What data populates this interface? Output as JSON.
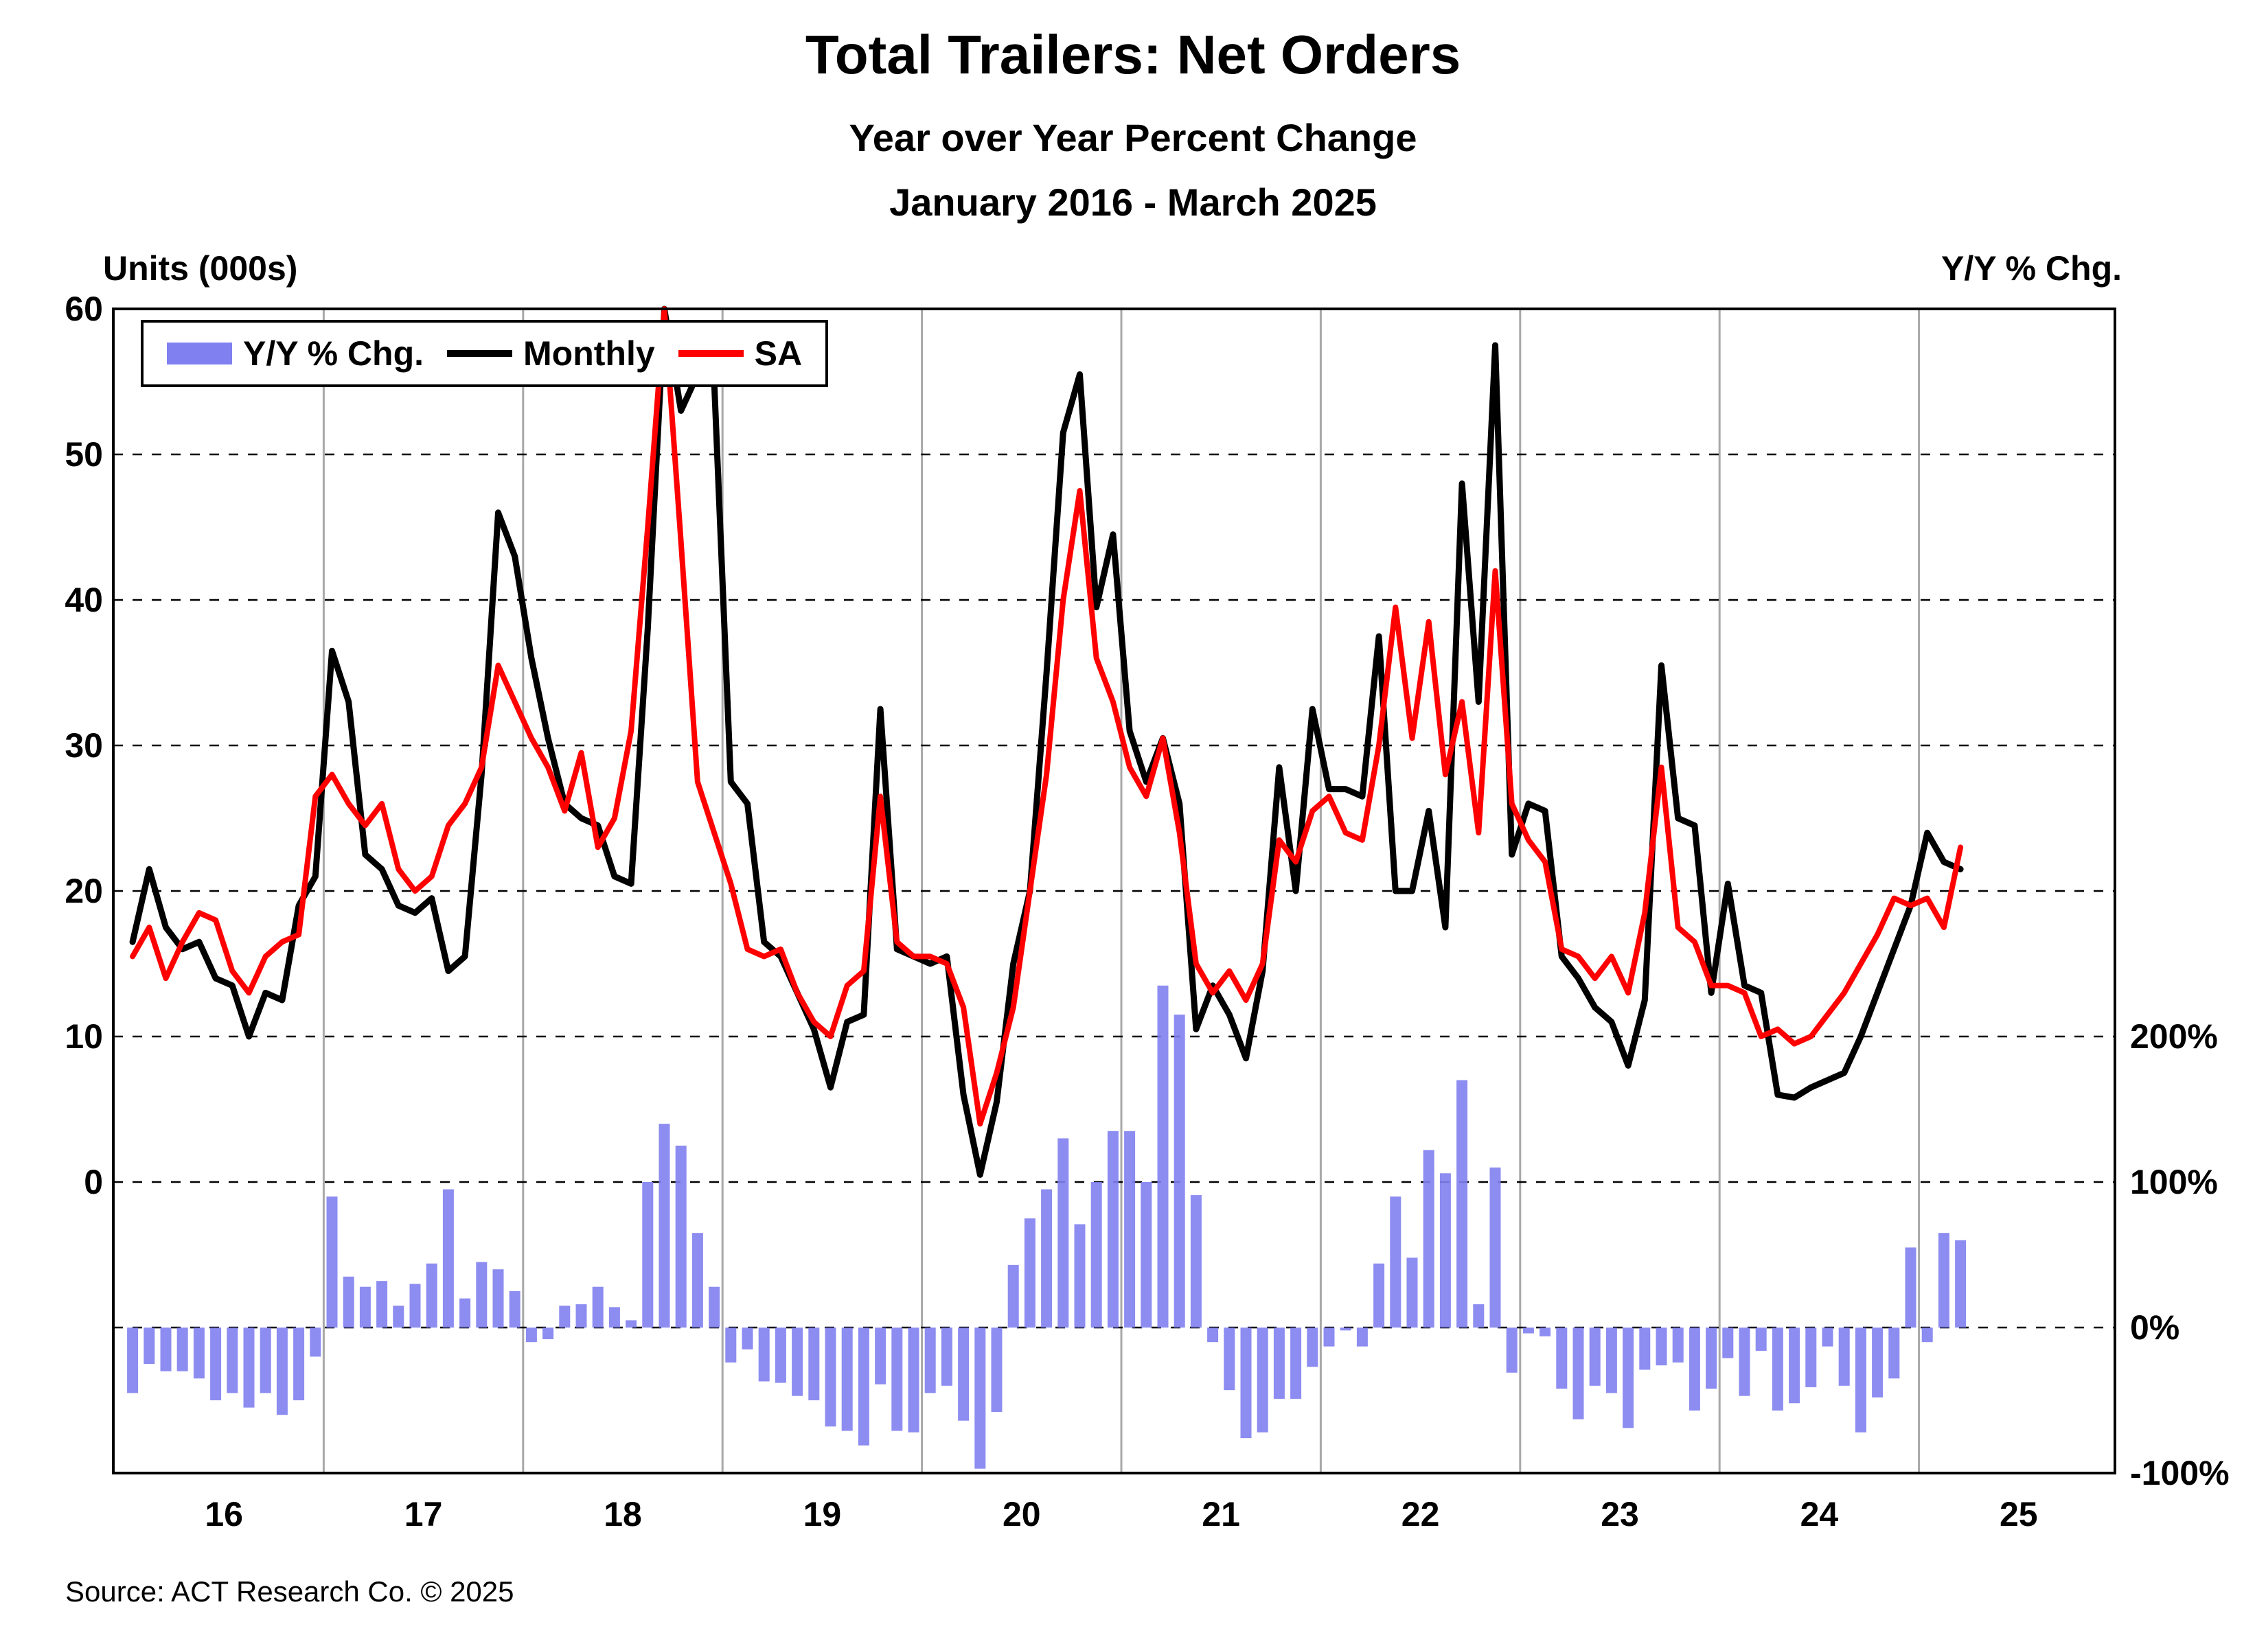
{
  "page": {
    "background": "#ffffff"
  },
  "chart_data": {
    "type": "combo line+bar",
    "title": "Total Trailers: Net Orders",
    "subtitle1": "Year over Year Percent Change",
    "subtitle2": "January 2016 - March 2025",
    "source": "Source: ACT Research Co. © 2025",
    "x_start": "2016-01",
    "x_end": "2025-03",
    "months": 111,
    "x_ticks": [
      "16",
      "17",
      "18",
      "19",
      "20",
      "21",
      "22",
      "23",
      "24",
      "25"
    ],
    "grid": "horizontal dashed unit lines, vertical solid year lines",
    "legend_position": "top-left inside plot",
    "left_axis": {
      "label": "Units (000s)",
      "ticks": [
        60,
        50,
        40,
        30,
        20,
        10,
        0
      ],
      "min_visible": 0,
      "max_visible": 60
    },
    "right_axis": {
      "label": "Y/Y % Chg.",
      "tick_labels": [
        "200%",
        "100%",
        "0%",
        "-100%"
      ],
      "tick_values": [
        200,
        100,
        0,
        -100
      ]
    },
    "series": [
      {
        "name": "Y/Y % Chg.",
        "type": "bar",
        "axis": "right",
        "color": "#8080f0",
        "values": [
          -45,
          -25,
          -30,
          -30,
          -35,
          -50,
          -45,
          -55,
          -45,
          -60,
          -50,
          -20,
          90,
          35,
          28,
          32,
          15,
          30,
          44,
          95,
          20,
          45,
          40,
          25,
          -10,
          -8,
          15,
          16,
          28,
          14,
          5,
          100,
          140,
          125,
          65,
          28,
          -24,
          -15,
          -37,
          -38,
          -47,
          -50,
          -68,
          -71,
          -81,
          -39,
          -71,
          -72,
          -45,
          -40,
          -64,
          -97,
          -58,
          43,
          75,
          95,
          130,
          71,
          100,
          135,
          135,
          100,
          235,
          215,
          91,
          -10,
          -43,
          -76,
          -72,
          -49,
          -49,
          -27,
          -13,
          -2,
          -13,
          44,
          90,
          48,
          122,
          106,
          170,
          16,
          110,
          -31,
          -4,
          -6,
          -42,
          -63,
          -40,
          -45,
          -69,
          -29,
          -26,
          -24,
          -57,
          -42,
          -21,
          -47,
          -16,
          -57,
          -52,
          -41,
          -13,
          -40,
          -72,
          -48,
          -35,
          55,
          -10,
          65,
          60
        ]
      },
      {
        "name": "Monthly",
        "type": "line",
        "axis": "left",
        "color": "#000000",
        "values": [
          16.5,
          21.5,
          17.5,
          16,
          16.5,
          14,
          13.5,
          10,
          13,
          12.5,
          19,
          21,
          36.5,
          33,
          22.5,
          21.5,
          19,
          18.5,
          19.5,
          14.5,
          15.5,
          28,
          46,
          43,
          36,
          30.5,
          26,
          25,
          24.5,
          21,
          20.5,
          38,
          60,
          53,
          55.5,
          55,
          27.5,
          26,
          16.5,
          15.5,
          13,
          10.5,
          6.5,
          11,
          11.5,
          32.5,
          16,
          15.5,
          15,
          15.5,
          6,
          0.5,
          5.5,
          15,
          20,
          35,
          51.5,
          55.5,
          39.5,
          44.5,
          31,
          27.5,
          30.5,
          26,
          10.5,
          13.5,
          11.5,
          8.5,
          14.5,
          28.5,
          20,
          32.5,
          27,
          27,
          26.5,
          37.5,
          20,
          20,
          25.5,
          17.5,
          48,
          33,
          57.5,
          22.5,
          26,
          25.5,
          15.5,
          14,
          12,
          11,
          8,
          12.5,
          35.5,
          25,
          24.5,
          13,
          20.5,
          13.5,
          13,
          6,
          5.8,
          6.5,
          7,
          7.5,
          10,
          13,
          16,
          19,
          24,
          22,
          21.5
        ]
      },
      {
        "name": "SA",
        "type": "line",
        "axis": "left",
        "color": "#ff0000",
        "values": [
          15.5,
          17.5,
          14,
          16.5,
          18.5,
          18,
          14.5,
          13,
          15.5,
          16.5,
          17,
          26.5,
          28,
          26,
          24.5,
          26,
          21.5,
          20,
          21,
          24.5,
          26,
          28.5,
          35.5,
          33,
          30.5,
          28.5,
          25.5,
          29.5,
          23,
          25,
          31,
          45,
          60,
          44,
          27.5,
          24,
          20.5,
          16,
          15.5,
          16,
          13,
          11,
          10,
          13.5,
          14.5,
          26.5,
          16.5,
          15.5,
          15.5,
          15,
          12,
          4,
          7.5,
          12,
          20,
          28,
          40,
          47.5,
          36,
          33,
          28.5,
          26.5,
          30.5,
          24,
          15,
          13,
          14.5,
          12.5,
          15,
          23.5,
          22,
          25.5,
          26.5,
          24,
          23.5,
          30,
          39.5,
          30.5,
          38.5,
          28,
          33,
          24,
          42,
          26,
          23.5,
          22,
          16,
          15.5,
          14,
          15.5,
          13,
          18.5,
          28.5,
          17.5,
          16.5,
          13.5,
          13.5,
          13,
          10,
          10.5,
          9.5,
          10,
          11.5,
          13,
          15,
          17,
          19.5,
          19,
          19.5,
          17.5,
          23
        ]
      }
    ]
  }
}
